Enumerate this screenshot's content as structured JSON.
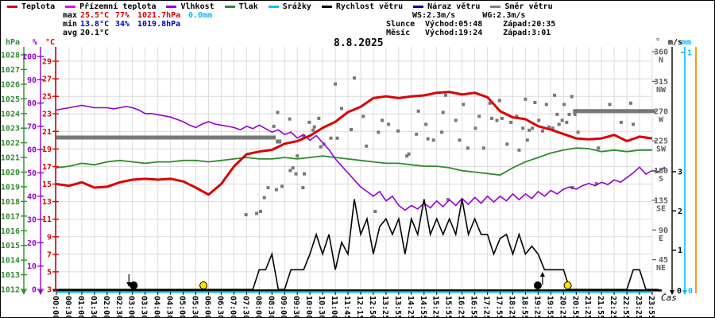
{
  "window": {
    "title": "8.8.2025"
  },
  "legend": {
    "items": [
      {
        "label": "Teplota",
        "color": "#dd0000"
      },
      {
        "label": "Přízemní teplota",
        "color": "#ee00ee"
      },
      {
        "label": "Vlhkost",
        "color": "#9400d3"
      },
      {
        "label": "Tlak",
        "color": "#2e8b2e"
      },
      {
        "label": "Srážky",
        "color": "#00bfff"
      },
      {
        "label": "Rychlost větru",
        "color": "#000000"
      },
      {
        "label": "Náraz větru",
        "color": "#000099"
      },
      {
        "label": "Směr větru",
        "color": "#808080"
      }
    ]
  },
  "stats": {
    "rows": [
      {
        "label": "max",
        "values": [
          {
            "text": "25.5°C",
            "color": "#dd0000"
          },
          {
            "text": "77%",
            "color": "#dd0000"
          },
          {
            "text": "1021.7hPa",
            "color": "#dd0000"
          },
          {
            "text": "0.0mm",
            "color": "#00bfff"
          }
        ]
      },
      {
        "label": "min",
        "values": [
          {
            "text": "13.8°C",
            "color": "#0000cc"
          },
          {
            "text": "34%",
            "color": "#0000cc"
          },
          {
            "text": "1019.8hPa",
            "color": "#0000cc"
          }
        ]
      },
      {
        "label": "avg",
        "values": [
          {
            "text": "20.1°C",
            "color": "#000000"
          }
        ]
      }
    ]
  },
  "astro": {
    "wind_speed_max": "WS:2.3m/s",
    "wind_gust_max": "WG:2.3m/s",
    "sun_label": "Slunce",
    "sun_rise": "Východ:05:48",
    "sun_set": "Západ:20:35",
    "moon_label": "Měsíc",
    "moon_rise": "Východ:19:24",
    "moon_set": "Západ:3:01"
  },
  "chart_data": {
    "type": "line",
    "title": "8.8.2025",
    "xlabel": "Čas",
    "x_labels": [
      "00:00",
      "00:30",
      "01:00",
      "01:30",
      "02:00",
      "02:30",
      "03:00",
      "03:30",
      "04:00",
      "04:30",
      "05:00",
      "05:30",
      "06:00",
      "06:30",
      "07:00",
      "07:30",
      "08:00",
      "08:30",
      "09:00",
      "09:30",
      "10:00",
      "10:30",
      "11:00",
      "11:45",
      "12:15",
      "12:50",
      "13:25",
      "13:55",
      "14:25",
      "14:55",
      "15:25",
      "15:55",
      "16:25",
      "16:55",
      "17:25",
      "17:55",
      "18:25",
      "18:55",
      "19:25",
      "19:55",
      "20:25",
      "20:55",
      "21:25",
      "21:55",
      "22:25",
      "22:55",
      "23:25",
      "23:55"
    ],
    "grid": true,
    "axes": {
      "temperature": {
        "unit": "°C",
        "min": 3,
        "max": 29,
        "tick_step": 2,
        "color": "#dd0000"
      },
      "humidity": {
        "unit": "%",
        "min": 0,
        "max": 100,
        "tick_step": 10,
        "color": "#9400d3"
      },
      "pressure": {
        "unit": "hPa",
        "min": 1012,
        "max": 1028,
        "tick_step": 1,
        "color": "#2e8b2e"
      },
      "direction": {
        "unit": "°",
        "color": "#606060",
        "ticks": [
          {
            "deg": 360,
            "label": "N"
          },
          {
            "deg": 315,
            "label": "NW"
          },
          {
            "deg": 270,
            "label": "W"
          },
          {
            "deg": 225,
            "label": "SW"
          },
          {
            "deg": 180,
            "label": "S"
          },
          {
            "deg": 135,
            "label": "SE"
          },
          {
            "deg": 90,
            "label": "E"
          },
          {
            "deg": 45,
            "label": "NE"
          }
        ]
      },
      "wind": {
        "unit": "m/s",
        "min": 0,
        "ticks": [
          1,
          2,
          3
        ],
        "color": "#000000"
      },
      "rain": {
        "unit": "mm",
        "min": 0,
        "ticks": [
          1
        ],
        "color": "#00bfff"
      },
      "extra_right_line_color": "#ff8c00"
    },
    "series": {
      "temperature": {
        "name": "Teplota",
        "color": "#dd0000",
        "values": [
          15.0,
          14.8,
          15.2,
          14.6,
          14.7,
          15.2,
          15.5,
          15.6,
          15.5,
          15.6,
          15.3,
          14.6,
          13.8,
          15.0,
          17.0,
          18.4,
          18.7,
          18.9,
          19.6,
          19.9,
          20.5,
          21.4,
          22.1,
          23.2,
          23.8,
          24.8,
          25.0,
          24.8,
          25.0,
          25.1,
          25.4,
          25.5,
          25.2,
          25.4,
          24.9,
          23.3,
          22.6,
          22.4,
          21.6,
          21.2,
          20.7,
          20.2,
          20.1,
          20.2,
          20.6,
          19.9,
          20.4,
          20.2
        ]
      },
      "pressure": {
        "name": "Tlak",
        "color": "#2e8b2e",
        "values": [
          1020.3,
          1020.4,
          1020.6,
          1020.5,
          1020.7,
          1020.8,
          1020.7,
          1020.6,
          1020.7,
          1020.7,
          1020.8,
          1020.8,
          1020.7,
          1020.8,
          1020.9,
          1021.0,
          1020.9,
          1020.9,
          1021.0,
          1020.9,
          1021.0,
          1021.1,
          1021.0,
          1020.9,
          1020.8,
          1020.7,
          1020.6,
          1020.6,
          1020.5,
          1020.4,
          1020.4,
          1020.3,
          1020.1,
          1020.0,
          1019.9,
          1019.8,
          1020.3,
          1020.7,
          1021.0,
          1021.3,
          1021.5,
          1021.65,
          1021.6,
          1021.4,
          1021.5,
          1021.4,
          1021.5,
          1021.5
        ]
      },
      "humidity": {
        "name": "Vlhkost",
        "color": "#9400d3",
        "samples_per_label": 2,
        "values": [
          77,
          77.5,
          78,
          78.5,
          79,
          78.5,
          78,
          78,
          78,
          77.5,
          78,
          78.5,
          78,
          77,
          75.5,
          75.5,
          75,
          74.5,
          74,
          73,
          72,
          70.5,
          69.5,
          71,
          72,
          71,
          70.5,
          70,
          69.5,
          68.5,
          70,
          69,
          70.5,
          69,
          67.5,
          68.5,
          66.5,
          67.5,
          65,
          66.5,
          64,
          66,
          63,
          60,
          56,
          53,
          50,
          47,
          44,
          42,
          40,
          42,
          38,
          40,
          36,
          34,
          36,
          34.5,
          37,
          35,
          38,
          35.5,
          38.5,
          36,
          39,
          36.5,
          39.5,
          37,
          40,
          37.5,
          40,
          38,
          41,
          38.5,
          41,
          39,
          42,
          40,
          42.5,
          41,
          43,
          44,
          43,
          44.5,
          45.5,
          44.5,
          46,
          45,
          47,
          46,
          48,
          50,
          52.5,
          49.5,
          51,
          50.5,
          52.5
        ]
      },
      "wind_speed": {
        "name": "Rychlost větru",
        "color": "#000000",
        "samples_per_label": 2,
        "values": [
          0,
          0,
          0,
          0,
          0,
          0,
          0,
          0,
          0,
          0,
          0,
          0,
          0,
          0,
          0,
          0,
          0,
          0,
          0,
          0,
          0,
          0,
          0,
          0,
          0,
          0,
          0,
          0,
          0,
          0,
          0,
          0,
          0.5,
          0.5,
          0.9,
          0,
          0,
          0.5,
          0.5,
          0.5,
          0.9,
          1.4,
          0.9,
          1.4,
          0.5,
          1.2,
          0.9,
          2.3,
          1.4,
          1.8,
          0.9,
          1.6,
          1.8,
          1.4,
          1.8,
          0.9,
          1.8,
          1.4,
          2.3,
          1.4,
          1.8,
          1.4,
          1.8,
          1.4,
          2.3,
          1.4,
          1.8,
          1.4,
          1.4,
          0.9,
          1.3,
          1.4,
          0.9,
          1.4,
          0.9,
          1.1,
          0.9,
          0.5,
          0.5,
          0.5,
          0.5,
          0,
          0,
          0,
          0,
          0,
          0,
          0,
          0,
          0,
          0,
          0.5,
          0.5,
          0,
          0,
          0
        ]
      },
      "precipitation": {
        "name": "Srážky",
        "color": "#00bfff",
        "constant_value": 0
      },
      "wind_gust": {
        "name": "Náraz větru",
        "color": "#000099",
        "note": "coincides with wind speed"
      },
      "wind_direction": {
        "name": "Směr větru",
        "color": "#787878",
        "segments": [
          {
            "from": 0,
            "to": 17.3,
            "deg": 230
          },
          {
            "from": 17.3,
            "to": 17.75,
            "deg": 224
          },
          {
            "from": 40.75,
            "to": 47.2,
            "deg": 270
          }
        ],
        "points": [
          [
            14.95,
            113
          ],
          [
            15.8,
            115
          ],
          [
            16.1,
            118
          ],
          [
            16.4,
            139
          ],
          [
            16.7,
            154
          ],
          [
            17.15,
            247
          ],
          [
            17.35,
            151
          ],
          [
            17.45,
            268
          ],
          [
            17.8,
            156
          ],
          [
            18.4,
            258
          ],
          [
            18.45,
            180
          ],
          [
            18.65,
            184
          ],
          [
            18.9,
            175
          ],
          [
            19.0,
            202
          ],
          [
            19.45,
            154
          ],
          [
            19.5,
            232
          ],
          [
            19.55,
            175
          ],
          [
            19.95,
            253
          ],
          [
            20.25,
            241
          ],
          [
            20.35,
            246
          ],
          [
            20.7,
            259
          ],
          [
            20.85,
            216
          ],
          [
            21.1,
            220
          ],
          [
            21.65,
            229
          ],
          [
            22.0,
            311
          ],
          [
            22.15,
            229
          ],
          [
            22.5,
            274
          ],
          [
            23.25,
            242
          ],
          [
            23.5,
            320
          ],
          [
            24.2,
            262
          ],
          [
            24.45,
            217
          ],
          [
            25.15,
            118
          ],
          [
            25.4,
            238
          ],
          [
            25.7,
            256
          ],
          [
            26.2,
            250
          ],
          [
            26.95,
            240
          ],
          [
            27.65,
            202
          ],
          [
            27.8,
            205
          ],
          [
            28.4,
            235
          ],
          [
            28.55,
            270
          ],
          [
            29.15,
            250
          ],
          [
            29.3,
            228
          ],
          [
            29.75,
            226
          ],
          [
            30.4,
            238
          ],
          [
            30.5,
            268
          ],
          [
            30.7,
            294
          ],
          [
            30.9,
            136
          ],
          [
            31.5,
            256
          ],
          [
            31.8,
            226
          ],
          [
            32.1,
            280
          ],
          [
            32.45,
            214
          ],
          [
            33.05,
            244
          ],
          [
            33.35,
            262
          ],
          [
            33.7,
            214
          ],
          [
            34.2,
            282
          ],
          [
            34.35,
            259
          ],
          [
            34.75,
            256
          ],
          [
            34.95,
            286
          ],
          [
            35.15,
            259
          ],
          [
            35.55,
            220
          ],
          [
            35.85,
            253
          ],
          [
            36.3,
            262
          ],
          [
            36.5,
            211
          ],
          [
            36.8,
            244
          ],
          [
            37.0,
            288
          ],
          [
            37.15,
            226
          ],
          [
            37.3,
            241
          ],
          [
            37.55,
            244
          ],
          [
            37.75,
            283
          ],
          [
            38.05,
            256
          ],
          [
            38.35,
            240
          ],
          [
            38.65,
            280
          ],
          [
            38.85,
            246
          ],
          [
            39.15,
            244
          ],
          [
            39.3,
            294
          ],
          [
            39.5,
            265
          ],
          [
            39.65,
            250
          ],
          [
            39.9,
            256
          ],
          [
            40.05,
            280
          ],
          [
            40.25,
            253
          ],
          [
            40.45,
            265
          ],
          [
            40.65,
            292
          ],
          [
            40.7,
            154
          ],
          [
            40.9,
            265
          ],
          [
            41.15,
            238
          ],
          [
            42.6,
            160
          ],
          [
            42.75,
            214
          ],
          [
            43.65,
            280
          ],
          [
            44.55,
            253
          ],
          [
            45.3,
            282
          ],
          [
            45.5,
            250
          ]
        ]
      }
    },
    "markers": [
      {
        "type": "moon-set",
        "x_index": 6.1,
        "arrow": "down",
        "color": "#000000"
      },
      {
        "type": "sun-rise",
        "x_index": 11.6,
        "color": "#ffe000"
      },
      {
        "type": "moon-rise",
        "x_index": 37.97,
        "arrow": "up",
        "color": "#000000"
      },
      {
        "type": "sun-set",
        "x_index": 40.33,
        "color": "#ffe000"
      }
    ]
  }
}
